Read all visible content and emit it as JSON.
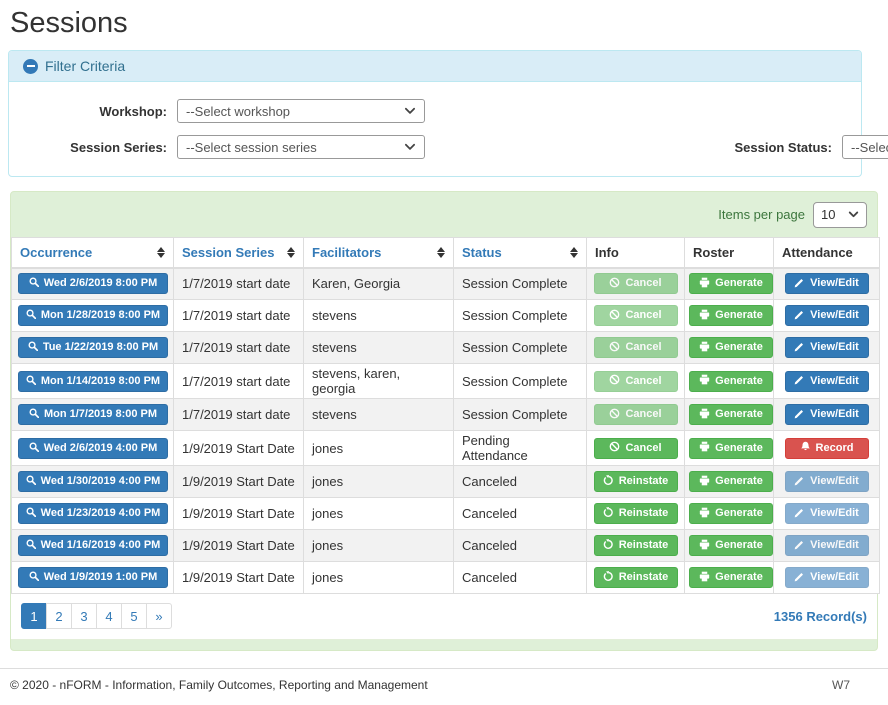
{
  "page": {
    "title": "Sessions"
  },
  "accents": {
    "primary_blue": "#337ab7",
    "success_green": "#5cb85c",
    "danger_red": "#d9534f",
    "info_header_bg": "#d9edf7",
    "info_header_text": "#31708f",
    "panel_green_bg": "#dff0d8",
    "panel_green_border": "#d6e9c6",
    "stripe_gray": "#f2f2f2"
  },
  "filter": {
    "header": "Filter Criteria",
    "collapse_icon": "minus-circle-icon",
    "workshop": {
      "label": "Workshop:",
      "value": "--Select workshop"
    },
    "session_series": {
      "label": "Session Series:",
      "value": "--Select session series"
    },
    "session_status": {
      "label": "Session Status:",
      "value": "--Select session status"
    }
  },
  "table_panel": {
    "items_per_page_label": "Items per page",
    "items_per_page_value": "10",
    "columns": [
      {
        "label": "Occurrence",
        "sortable": true
      },
      {
        "label": "Session Series",
        "sortable": true
      },
      {
        "label": "Facilitators",
        "sortable": true
      },
      {
        "label": "Status",
        "sortable": true
      },
      {
        "label": "Info",
        "sortable": false
      },
      {
        "label": "Roster",
        "sortable": false
      },
      {
        "label": "Attendance",
        "sortable": false
      }
    ],
    "rows": [
      {
        "occurrence": "Wed 2/6/2019 8:00 PM",
        "series": "1/7/2019 start date",
        "facilitators": "Karen, Georgia",
        "info": {
          "label": "Cancel",
          "icon": "ban",
          "style": "success",
          "disabled": true
        },
        "roster": {
          "label": "Generate",
          "icon": "printer",
          "style": "success",
          "disabled": false
        },
        "attendance": {
          "label": "View/Edit",
          "icon": "pencil",
          "style": "primary",
          "disabled": false
        },
        "status": "Session Complete"
      },
      {
        "occurrence": "Mon 1/28/2019 8:00 PM",
        "series": "1/7/2019 start date",
        "facilitators": "stevens",
        "info": {
          "label": "Cancel",
          "icon": "ban",
          "style": "success",
          "disabled": true
        },
        "roster": {
          "label": "Generate",
          "icon": "printer",
          "style": "success",
          "disabled": false
        },
        "attendance": {
          "label": "View/Edit",
          "icon": "pencil",
          "style": "primary",
          "disabled": false
        },
        "status": "Session Complete"
      },
      {
        "occurrence": "Tue 1/22/2019 8:00 PM",
        "series": "1/7/2019 start date",
        "facilitators": "stevens",
        "info": {
          "label": "Cancel",
          "icon": "ban",
          "style": "success",
          "disabled": true
        },
        "roster": {
          "label": "Generate",
          "icon": "printer",
          "style": "success",
          "disabled": false
        },
        "attendance": {
          "label": "View/Edit",
          "icon": "pencil",
          "style": "primary",
          "disabled": false
        },
        "status": "Session Complete"
      },
      {
        "occurrence": "Mon 1/14/2019 8:00 PM",
        "series": "1/7/2019 start date",
        "facilitators": "stevens, karen, georgia",
        "info": {
          "label": "Cancel",
          "icon": "ban",
          "style": "success",
          "disabled": true
        },
        "roster": {
          "label": "Generate",
          "icon": "printer",
          "style": "success",
          "disabled": false
        },
        "attendance": {
          "label": "View/Edit",
          "icon": "pencil",
          "style": "primary",
          "disabled": false
        },
        "status": "Session Complete"
      },
      {
        "occurrence": "Mon 1/7/2019 8:00 PM",
        "series": "1/7/2019 start date",
        "facilitators": "stevens",
        "info": {
          "label": "Cancel",
          "icon": "ban",
          "style": "success",
          "disabled": true
        },
        "roster": {
          "label": "Generate",
          "icon": "printer",
          "style": "success",
          "disabled": false
        },
        "attendance": {
          "label": "View/Edit",
          "icon": "pencil",
          "style": "primary",
          "disabled": false
        },
        "status": "Session Complete"
      },
      {
        "occurrence": "Wed 2/6/2019 4:00 PM",
        "series": "1/9/2019 Start Date",
        "facilitators": "jones",
        "info": {
          "label": "Cancel",
          "icon": "ban",
          "style": "success",
          "disabled": false
        },
        "roster": {
          "label": "Generate",
          "icon": "printer",
          "style": "success",
          "disabled": false
        },
        "attendance": {
          "label": "Record",
          "icon": "bell",
          "style": "danger",
          "disabled": false
        },
        "status": "Pending Attendance"
      },
      {
        "occurrence": "Wed 1/30/2019 4:00 PM",
        "series": "1/9/2019 Start Date",
        "facilitators": "jones",
        "info": {
          "label": "Reinstate",
          "icon": "undo",
          "style": "success",
          "disabled": false
        },
        "roster": {
          "label": "Generate",
          "icon": "printer",
          "style": "success",
          "disabled": false
        },
        "attendance": {
          "label": "View/Edit",
          "icon": "pencil",
          "style": "primary",
          "disabled": true
        },
        "status": "Canceled"
      },
      {
        "occurrence": "Wed 1/23/2019 4:00 PM",
        "series": "1/9/2019 Start Date",
        "facilitators": "jones",
        "info": {
          "label": "Reinstate",
          "icon": "undo",
          "style": "success",
          "disabled": false
        },
        "roster": {
          "label": "Generate",
          "icon": "printer",
          "style": "success",
          "disabled": false
        },
        "attendance": {
          "label": "View/Edit",
          "icon": "pencil",
          "style": "primary",
          "disabled": true
        },
        "status": "Canceled"
      },
      {
        "occurrence": "Wed 1/16/2019 4:00 PM",
        "series": "1/9/2019 Start Date",
        "facilitators": "jones",
        "info": {
          "label": "Reinstate",
          "icon": "undo",
          "style": "success",
          "disabled": false
        },
        "roster": {
          "label": "Generate",
          "icon": "printer",
          "style": "success",
          "disabled": false
        },
        "attendance": {
          "label": "View/Edit",
          "icon": "pencil",
          "style": "primary",
          "disabled": true
        },
        "status": "Canceled"
      },
      {
        "occurrence": "Wed 1/9/2019 1:00 PM",
        "series": "1/9/2019 Start Date",
        "facilitators": "jones",
        "info": {
          "label": "Reinstate",
          "icon": "undo",
          "style": "success",
          "disabled": false
        },
        "roster": {
          "label": "Generate",
          "icon": "printer",
          "style": "success",
          "disabled": false
        },
        "attendance": {
          "label": "View/Edit",
          "icon": "pencil",
          "style": "primary",
          "disabled": true
        },
        "status": "Canceled"
      }
    ],
    "pagination": {
      "pages": [
        "1",
        "2",
        "3",
        "4",
        "5"
      ],
      "active": "1",
      "next": "»"
    },
    "record_count": "1356 Record(s)"
  },
  "footer": {
    "copyright": "© 2020 - nFORM - Information, Family Outcomes, Reporting and Management",
    "version": "W7"
  }
}
